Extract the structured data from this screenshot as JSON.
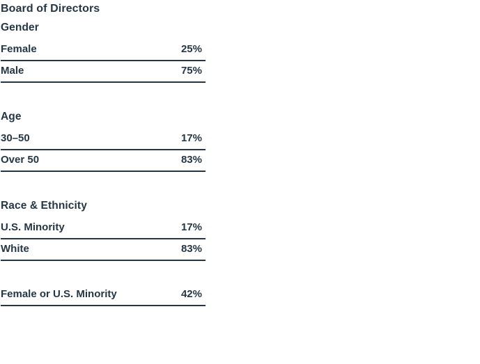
{
  "colors": {
    "background": "#ffffff",
    "text": "#253746",
    "rule": "#253746"
  },
  "table": {
    "title": "Board of Directors",
    "sections": [
      {
        "heading": "Gender",
        "rows": [
          {
            "label": "Female",
            "value": "25%"
          },
          {
            "label": "Male",
            "value": "75%"
          }
        ]
      },
      {
        "heading": "Age",
        "rows": [
          {
            "label": "30–50",
            "value": "17%"
          },
          {
            "label": "Over 50",
            "value": "83%"
          }
        ]
      },
      {
        "heading": "Race & Ethnicity",
        "rows": [
          {
            "label": "U.S. Minority",
            "value": "17%"
          },
          {
            "label": "White",
            "value": "83%"
          }
        ]
      },
      {
        "heading": "",
        "rows": [
          {
            "label": "Female or U.S. Minority",
            "value": "42%"
          }
        ]
      }
    ]
  },
  "chart_data": {
    "type": "table",
    "title": "Board of Directors",
    "unit": "%",
    "sections": [
      {
        "heading": "Gender",
        "categories": [
          "Female",
          "Male"
        ],
        "values": [
          25,
          75
        ]
      },
      {
        "heading": "Age",
        "categories": [
          "30–50",
          "Over 50"
        ],
        "values": [
          17,
          83
        ]
      },
      {
        "heading": "Race & Ethnicity",
        "categories": [
          "U.S. Minority",
          "White"
        ],
        "values": [
          17,
          83
        ]
      },
      {
        "heading": "",
        "categories": [
          "Female or U.S. Minority"
        ],
        "values": [
          42
        ]
      }
    ]
  }
}
